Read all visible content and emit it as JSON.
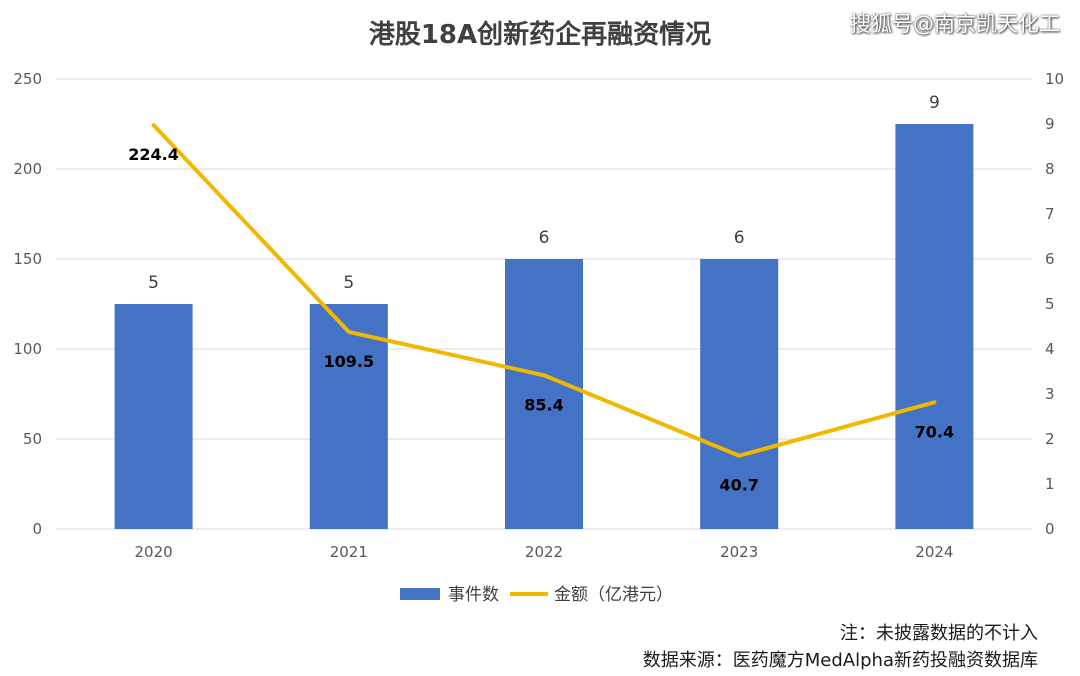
{
  "title": "港股18A创新药企再融资情况",
  "watermark": "搜狐号@南京凯天化工",
  "notes": {
    "note": "注：未披露数据的不计入",
    "source": "数据来源：医药魔方MedAlpha新药投融资数据库"
  },
  "colors": {
    "bar": "#4472C4",
    "line": "#F0B800",
    "grid": "#D9D9D9"
  },
  "chart_data": {
    "type": "bar",
    "title": "港股18A创新药企再融资情况",
    "categories": [
      "2020",
      "2021",
      "2022",
      "2023",
      "2024"
    ],
    "series": [
      {
        "name": "事件数",
        "type": "bar",
        "axis": "right",
        "values": [
          5,
          5,
          6,
          6,
          9
        ],
        "labels": [
          "5",
          "5",
          "6",
          "6",
          "9"
        ]
      },
      {
        "name": "金额（亿港元）",
        "type": "line",
        "axis": "left",
        "values": [
          224.4,
          109.5,
          85.4,
          40.7,
          70.4
        ],
        "labels": [
          "224.4",
          "109.5",
          "85.4",
          "40.7",
          "70.4"
        ]
      }
    ],
    "y_left": {
      "min": 0,
      "max": 250,
      "ticks": [
        "0",
        "50",
        "100",
        "150",
        "200",
        "250"
      ]
    },
    "y_right": {
      "min": 0,
      "max": 10,
      "ticks": [
        "0",
        "1",
        "2",
        "3",
        "4",
        "5",
        "6",
        "7",
        "8",
        "9",
        "10"
      ]
    },
    "legend": {
      "position": "bottom",
      "items": [
        "事件数",
        "金额（亿港元）"
      ]
    },
    "grid": true
  }
}
